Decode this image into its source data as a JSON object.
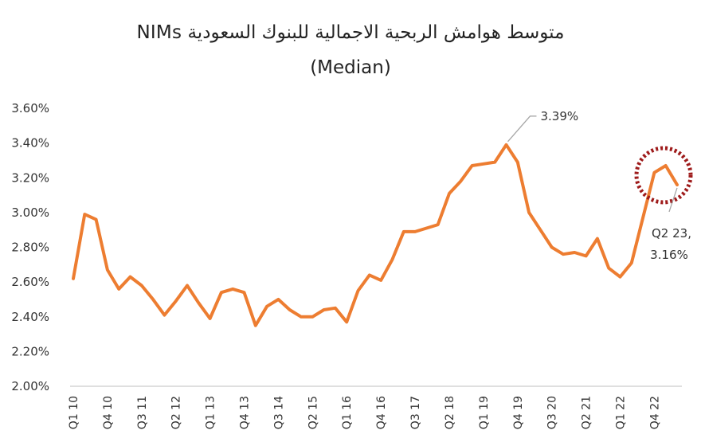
{
  "chart_data": {
    "type": "line",
    "title": "متوسط هوامش الربحية الاجمالية للبنوك السعودية  NIMs",
    "subtitle": "(Median)",
    "xlabel": "",
    "ylabel": "",
    "ylim": [
      2.0,
      3.6
    ],
    "y_ticks": [
      "2.00%",
      "2.20%",
      "2.40%",
      "2.60%",
      "2.80%",
      "3.00%",
      "3.20%",
      "3.40%",
      "3.60%"
    ],
    "y_tick_values": [
      2.0,
      2.2,
      2.4,
      2.6,
      2.8,
      3.0,
      3.2,
      3.4,
      3.6
    ],
    "grid": false,
    "legend": "none",
    "x_tick_labels": [
      "Q1 10",
      "Q4 10",
      "Q3 11",
      "Q2 12",
      "Q1 13",
      "Q4 13",
      "Q3 14",
      "Q2 15",
      "Q1 16",
      "Q4 16",
      "Q3 17",
      "Q2 18",
      "Q1 19",
      "Q4 19",
      "Q3 20",
      "Q2 21",
      "Q1 22",
      "Q4 22"
    ],
    "x_tick_every": 3,
    "series": [
      {
        "color": "#ED7D31",
        "values": [
          2.62,
          2.99,
          2.96,
          2.67,
          2.56,
          2.63,
          2.58,
          2.5,
          2.41,
          2.49,
          2.58,
          2.48,
          2.39,
          2.54,
          2.56,
          2.54,
          2.35,
          2.46,
          2.5,
          2.44,
          2.4,
          2.4,
          2.44,
          2.45,
          2.37,
          2.55,
          2.64,
          2.61,
          2.73,
          2.89,
          2.89,
          2.91,
          2.93,
          3.11,
          3.18,
          3.27,
          3.28,
          3.29,
          3.39,
          3.29,
          3.0,
          2.9,
          2.8,
          2.76,
          2.77,
          2.75,
          2.85,
          2.68,
          2.63,
          2.71,
          2.97,
          3.23,
          3.27,
          3.16
        ]
      }
    ],
    "annotations": [
      {
        "text": "3.39%",
        "point_index": 38
      },
      {
        "text_line1": "Q2 23,",
        "text_line2": "3.16%",
        "point_index": 53
      }
    ],
    "highlight_color": "#9E1B1B"
  }
}
